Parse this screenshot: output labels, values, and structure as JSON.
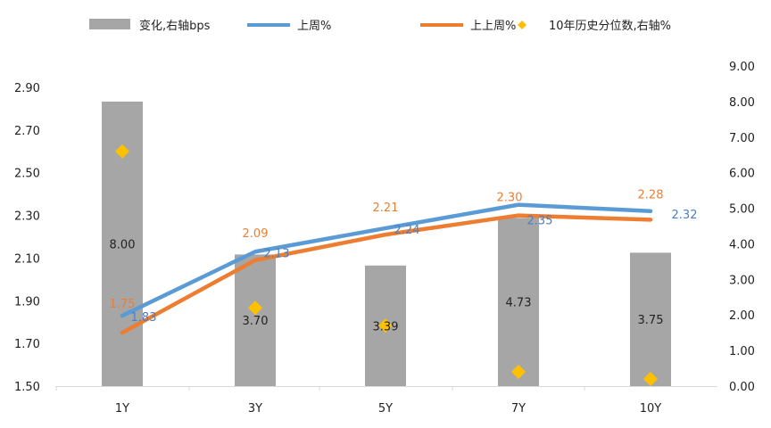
{
  "chart_data": {
    "type": "bar",
    "categories": [
      "1Y",
      "3Y",
      "5Y",
      "7Y",
      "10Y"
    ],
    "legend": [
      {
        "name": "变化,右轴bps",
        "kind": "bar",
        "color": "#a6a6a6"
      },
      {
        "name": "上周%",
        "kind": "line",
        "color": "#5b9bd5"
      },
      {
        "name": "上上周%",
        "kind": "line",
        "color": "#ed7d31"
      },
      {
        "name": "10年历史分位数,右轴%",
        "kind": "marker",
        "color": "#ffc000"
      }
    ],
    "bars": {
      "name": "变化,右轴bps",
      "values": [
        8.0,
        3.7,
        3.39,
        4.73,
        3.75
      ],
      "labels": [
        "8.00",
        "3.70",
        "3.39",
        "4.73",
        "3.75"
      ]
    },
    "series": [
      {
        "name": "上周%",
        "values": [
          1.83,
          2.13,
          2.24,
          2.35,
          2.32
        ],
        "labels": [
          "1.83",
          "2.13",
          "2.24",
          "2.35",
          "2.32"
        ]
      },
      {
        "name": "上上周%",
        "values": [
          1.75,
          2.09,
          2.21,
          2.3,
          2.28
        ],
        "labels": [
          "1.75",
          "2.09",
          "2.21",
          "2.30",
          "2.28"
        ]
      }
    ],
    "markers": {
      "name": "10年历史分位数,右轴%",
      "values": [
        6.6,
        2.2,
        1.7,
        0.4,
        0.2
      ]
    },
    "left_axis": {
      "ylim": [
        1.5,
        2.9
      ],
      "ticks": [
        "1.50",
        "1.70",
        "1.90",
        "2.10",
        "2.30",
        "2.50",
        "2.70",
        "2.90"
      ]
    },
    "right_axis": {
      "ylim": [
        0.0,
        9.0
      ],
      "ticks": [
        "0.00",
        "1.00",
        "2.00",
        "3.00",
        "4.00",
        "5.00",
        "6.00",
        "7.00",
        "8.00",
        "9.00"
      ]
    },
    "grid": false,
    "legend_position": "top"
  }
}
